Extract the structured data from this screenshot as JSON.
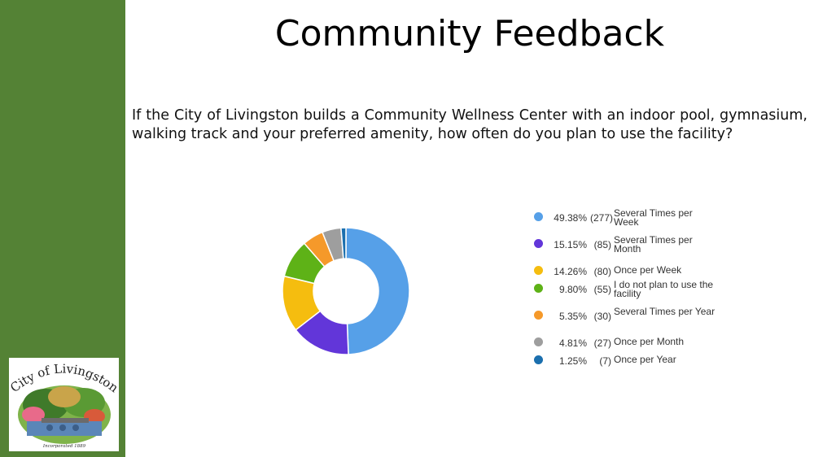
{
  "title": "Community Feedback",
  "question": "If the City of Livingston builds a Community Wellness Center with an indoor pool, gymnasium, walking track and your preferred amenity, how often do you plan to use the facility?",
  "logo": {
    "name_text": "City of Livingston",
    "sub_text": "Incorporated 1889"
  },
  "chart_data": {
    "type": "pie",
    "categories": [
      "Several Times per Week",
      "Several Times per Month",
      "Once per Week",
      "I do not plan to use the facility",
      "Several Times per Year",
      "Once per Month",
      "Once per Year"
    ],
    "values": [
      277,
      85,
      80,
      55,
      30,
      27,
      7
    ],
    "percent_labels": [
      "49.38%",
      "15.15%",
      "14.26%",
      "9.80%",
      "5.35%",
      "4.81%",
      "1.25%"
    ],
    "count_labels": [
      "(277)",
      "(85)",
      "(80)",
      "(55)",
      "(30)",
      "(27)",
      "(7)"
    ],
    "colors": [
      "#56a0e8",
      "#6236d9",
      "#f5bd0f",
      "#5eb217",
      "#f5992a",
      "#9e9e9e",
      "#1b6fae"
    ],
    "donut": true,
    "legend_position": "right"
  }
}
